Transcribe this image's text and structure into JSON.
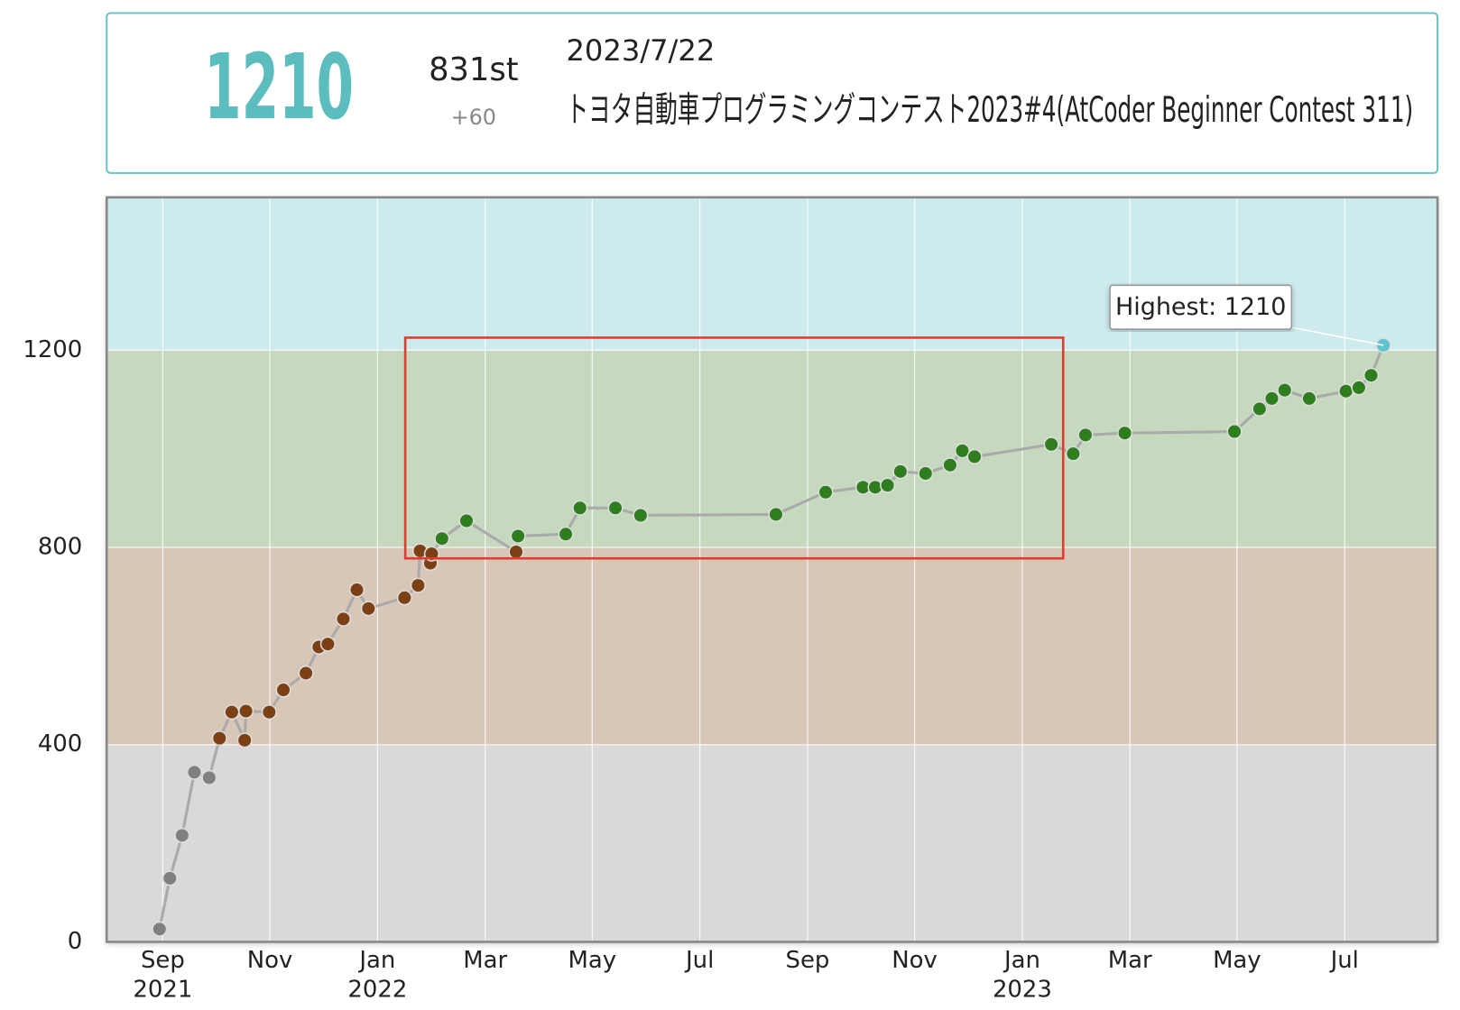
{
  "header": {
    "rating": "1210",
    "rank": "831st",
    "diff": "+60",
    "date": "2023/7/22",
    "contest": "トヨタ自動車プログラミングコンテスト2023#4(AtCoder Beginner Contest 311)"
  },
  "chart_data": {
    "type": "line",
    "x": [
      2021.662,
      2021.678,
      2021.697,
      2021.716,
      2021.739,
      2021.755,
      2021.774,
      2021.794,
      2021.796,
      2021.832,
      2021.854,
      2021.889,
      2021.909,
      2021.923,
      2021.947,
      2021.968,
      2021.986,
      2022.042,
      2022.063,
      2022.066,
      2022.082,
      2022.084,
      2022.1,
      2022.138,
      2022.215,
      2022.218,
      2022.292,
      2022.314,
      2022.369,
      2022.408,
      2022.618,
      2022.695,
      2022.753,
      2022.772,
      2022.791,
      2022.811,
      2022.85,
      2022.888,
      2022.907,
      2022.926,
      2023.045,
      2023.079,
      2023.098,
      2023.159,
      2023.329,
      2023.368,
      2023.387,
      2023.407,
      2023.445,
      2023.502,
      2023.522,
      2023.541,
      2023.56
    ],
    "values": [
      26,
      129,
      216,
      344,
      333,
      413,
      466,
      409,
      468,
      466,
      511,
      545,
      598,
      604,
      655,
      714,
      676,
      698,
      723,
      793,
      768,
      787,
      818,
      854,
      791,
      823,
      827,
      880,
      880,
      865,
      867,
      912,
      922,
      922,
      926,
      954,
      950,
      967,
      996,
      984,
      1009,
      990,
      1028,
      1032,
      1035,
      1081,
      1102,
      1119,
      1102,
      1117,
      1124,
      1149,
      1210
    ],
    "xlim": [
      2021.58,
      2023.644
    ],
    "ylim": [
      0,
      1510
    ],
    "xticks": [
      {
        "value": 2021.667,
        "label": "Sep 2021"
      },
      {
        "value": 2021.833,
        "label": "Nov"
      },
      {
        "value": 2022.0,
        "label": "Jan 2022"
      },
      {
        "value": 2022.167,
        "label": "Mar"
      },
      {
        "value": 2022.333,
        "label": "May"
      },
      {
        "value": 2022.5,
        "label": "Jul"
      },
      {
        "value": 2022.667,
        "label": "Sep"
      },
      {
        "value": 2022.833,
        "label": "Nov"
      },
      {
        "value": 2023.0,
        "label": "Jan 2023"
      },
      {
        "value": 2023.167,
        "label": "Mar"
      },
      {
        "value": 2023.333,
        "label": "May"
      },
      {
        "value": 2023.5,
        "label": "Jul"
      }
    ],
    "yticks": [
      0,
      400,
      800,
      1200
    ],
    "grid": true,
    "line_color": "#aaaaaa",
    "band_starts": [
      0,
      400,
      800,
      1200
    ],
    "band_colors": [
      "#d9d9d9",
      "#d8c6b6",
      "#c6d9bf",
      "#cdeaec"
    ],
    "point_colors": [
      "#808080",
      "#7b4014",
      "#2e7d1e",
      "#5ec3d2"
    ],
    "annotation": "Highest: 1210"
  }
}
